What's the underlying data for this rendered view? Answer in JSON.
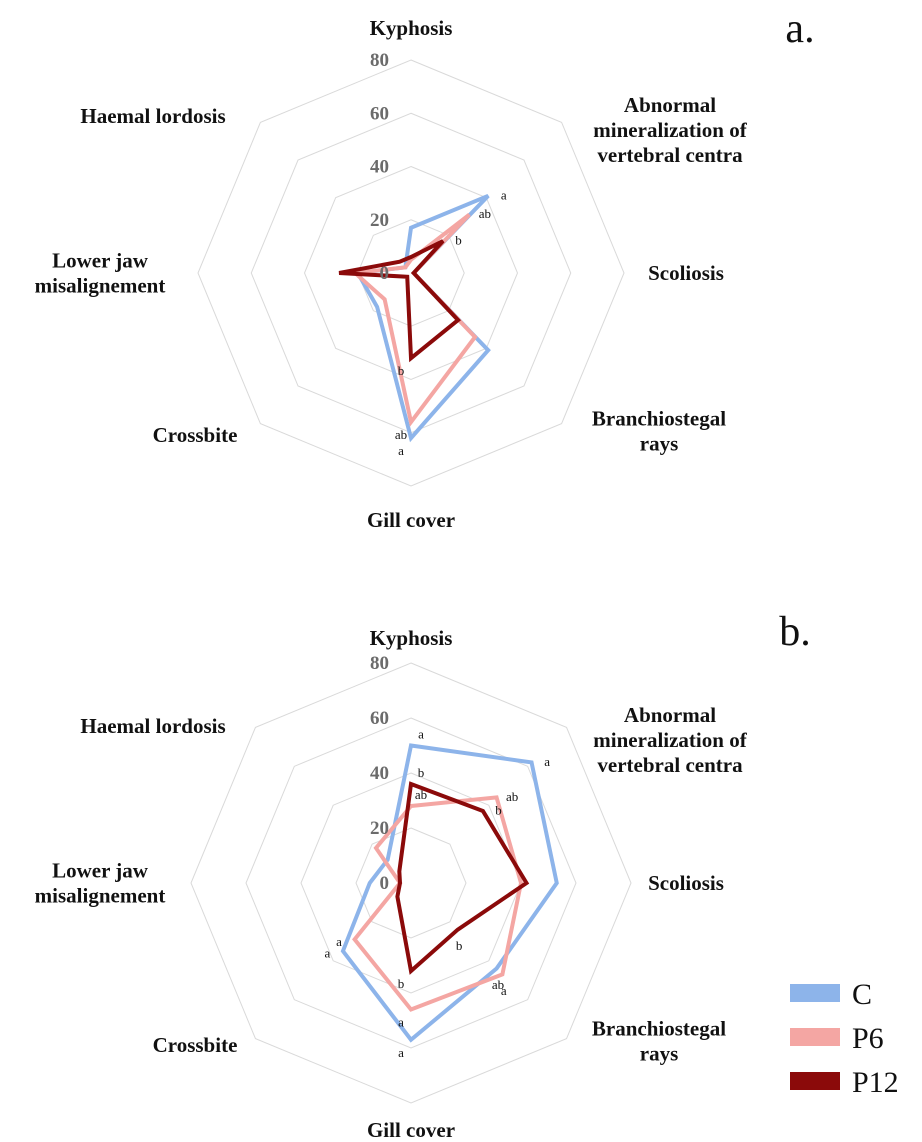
{
  "chart_data": [
    {
      "type": "radar",
      "title": "a.",
      "categories": [
        "Kyphosis",
        "Abnormal\nmineralization of\nvertebral centra",
        "Scoliosis",
        "Branchiostegal\nrays",
        "Gill cover",
        "Crossbite",
        "Lower jaw\nmisalignement",
        "Haemal lordosis"
      ],
      "rlim": [
        0,
        80
      ],
      "rticks": [
        0,
        20,
        40,
        60,
        80
      ],
      "series": [
        {
          "name": "C",
          "color": "#8db4ea",
          "values": [
            17,
            41,
            1,
            41,
            62,
            18,
            20,
            3
          ],
          "labels": [
            null,
            "a",
            null,
            null,
            "a",
            null,
            null,
            null
          ]
        },
        {
          "name": "P6",
          "color": "#f4a6a3",
          "values": [
            5,
            31,
            1,
            34,
            56,
            14,
            21,
            3
          ],
          "labels": [
            null,
            "ab",
            null,
            null,
            "ab",
            null,
            null,
            null
          ]
        },
        {
          "name": "P12",
          "color": "#8b0a0a",
          "values": [
            6,
            17,
            1,
            25,
            32,
            2,
            27,
            6
          ],
          "labels": [
            null,
            "b",
            null,
            null,
            "b",
            null,
            null,
            null
          ]
        }
      ]
    },
    {
      "type": "radar",
      "title": "b.",
      "categories": [
        "Kyphosis",
        "Abnormal\nmineralization of\nvertebral centra",
        "Scoliosis",
        "Branchiostegal\nrays",
        "Gill cover",
        "Crossbite",
        "Lower jaw\nmisalignement",
        "Haemal lordosis"
      ],
      "rlim": [
        0,
        80
      ],
      "rticks": [
        0,
        20,
        40,
        60,
        80
      ],
      "series": [
        {
          "name": "C",
          "color": "#8db4ea",
          "values": [
            50,
            62,
            53,
            44,
            57,
            35,
            15,
            12
          ],
          "labels": [
            "a",
            "a",
            null,
            "ab",
            "a",
            "a",
            null,
            null
          ]
        },
        {
          "name": "P6",
          "color": "#f4a6a3",
          "values": [
            28,
            44,
            40,
            47,
            46,
            29,
            4,
            18
          ],
          "labels": [
            "ab",
            "ab",
            null,
            "a",
            "a",
            "a",
            null,
            null
          ]
        },
        {
          "name": "P12",
          "color": "#8b0a0a",
          "values": [
            36,
            37,
            42,
            24,
            32,
            7,
            4,
            6
          ],
          "labels": [
            "b",
            "b",
            null,
            "b",
            "b",
            null,
            null,
            null
          ]
        }
      ]
    }
  ]
}
